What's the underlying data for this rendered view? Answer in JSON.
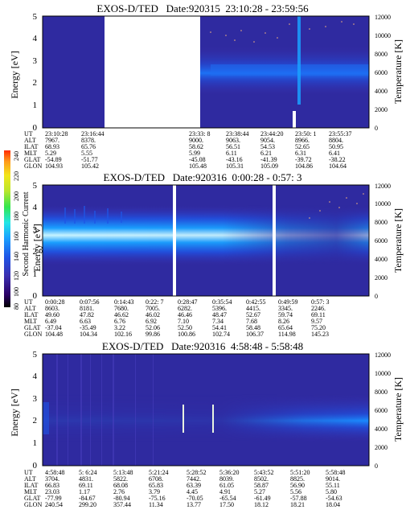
{
  "colorbar": {
    "label": "Second Harmonic Current",
    "ticks": [
      "80",
      "100",
      "120",
      "140",
      "160",
      "180",
      "200",
      "220",
      "240"
    ],
    "colors": [
      "#000000",
      "#2a0066",
      "#3b2fb0",
      "#1f55e6",
      "#1aa0ff",
      "#22e6e6",
      "#33e64d",
      "#b8e62e",
      "#f2e61a",
      "#ff9a1a",
      "#ff2a00"
    ]
  },
  "row_labels": [
    "UT",
    "ALT",
    "ILAT",
    "MLT",
    "GLAT",
    "GLON"
  ],
  "chart_data": [
    {
      "type": "heatmap",
      "title": "EXOS-D/TED   Date:920315  23:10:28 - 23:59:56",
      "ylabel": "Energy [eV]",
      "y2label": "Temperature [K]",
      "ylim": [
        0,
        5
      ],
      "y_ticks": [
        "0",
        "1",
        "2",
        "3",
        "4",
        "5"
      ],
      "y2lim": [
        0,
        12000
      ],
      "y2_ticks": [
        "0",
        "2000",
        "4000",
        "6000",
        "8000",
        "10000",
        "12000"
      ],
      "data_gap": true,
      "table": [
        [
          "23:10:28",
          "23:16:44",
          "23:33: 8",
          "23:38:44",
          "23:44:20",
          "23:50: 1",
          "23:55:37"
        ],
        [
          "7967.",
          "8378.",
          "9000.",
          "9063.",
          "9054.",
          "8966.",
          "8804."
        ],
        [
          "68.93",
          "65.76",
          "58.62",
          "56.51",
          "54.53",
          "52.65",
          "50.95"
        ],
        [
          "5.29",
          "5.55",
          "5.99",
          "6.11",
          "6.21",
          "6.31",
          "6.41"
        ],
        [
          "-54.89",
          "-51.77",
          "-45.08",
          "-43.16",
          "-41.39",
          "-39.72",
          "-38.22"
        ],
        [
          "104.93",
          "105.42",
          "105.48",
          "105.31",
          "105.09",
          "104.86",
          "104.64"
        ]
      ]
    },
    {
      "type": "heatmap",
      "title": "EXOS-D/TED   Date:920316  0:00:28 - 0:57: 3",
      "ylabel": "Energy [eV]",
      "y2label": "Temperature [K]",
      "ylim": [
        0,
        5
      ],
      "y_ticks": [
        "0",
        "1",
        "2",
        "3",
        "4",
        "5"
      ],
      "y2lim": [
        0,
        12000
      ],
      "y2_ticks": [
        "0",
        "2000",
        "4000",
        "6000",
        "8000",
        "10000",
        "12000"
      ],
      "table": [
        [
          "0:00:28",
          "0:07:56",
          "0:14:43",
          "0:22: 7",
          "0:28:47",
          "0:35:54",
          "0:42:55",
          "0:49:59",
          "0:57: 3"
        ],
        [
          "8603.",
          "8181.",
          "7680.",
          "7005.",
          "6282.",
          "5396.",
          "4415.",
          "3345.",
          "2246."
        ],
        [
          "49.60",
          "47.82",
          "46.62",
          "46.02",
          "46.46",
          "48.47",
          "52.67",
          "59.74",
          "69.11"
        ],
        [
          "6.49",
          "6.63",
          "6.76",
          "6.92",
          "7.10",
          "7.34",
          "7.68",
          "8.26",
          "9.57"
        ],
        [
          "-37.04",
          "-35.49",
          "3.22",
          "52.06",
          "52.50",
          "54.41",
          "58.48",
          "65.64",
          "75.20"
        ],
        [
          "104.48",
          "104.34",
          "102.16",
          "99.86",
          "100.86",
          "102.74",
          "106.37",
          "114.98",
          "145.23"
        ]
      ]
    },
    {
      "type": "heatmap",
      "title": "EXOS-D/TED   Date:920316  4:58:48 - 5:58:48",
      "ylabel": "Energy [eV]",
      "y2label": "Temperature [K]",
      "ylim": [
        0,
        5
      ],
      "y_ticks": [
        "0",
        "1",
        "2",
        "3",
        "4",
        "5"
      ],
      "y2lim": [
        0,
        12000
      ],
      "y2_ticks": [
        "0",
        "2000",
        "4000",
        "6000",
        "8000",
        "10000",
        "12000"
      ],
      "table": [
        [
          "4:58:48",
          "5: 6:24",
          "5:13:48",
          "5:21:24",
          "5:28:52",
          "5:36:20",
          "5:43:52",
          "5:51:20",
          "5:58:48"
        ],
        [
          "3704.",
          "4831.",
          "5822.",
          "6708.",
          "7442.",
          "8039.",
          "8502.",
          "8825.",
          "9014."
        ],
        [
          "66.83",
          "69.11",
          "68.08",
          "65.83",
          "63.39",
          "61.05",
          "58.87",
          "56.90",
          "55.11"
        ],
        [
          "23.03",
          "1.17",
          "2.76",
          "3.79",
          "4.45",
          "4.91",
          "5.27",
          "5.56",
          "5.80"
        ],
        [
          "-77.99",
          "-84.67",
          "-80.94",
          "-75.16",
          "-70.05",
          "-65.54",
          "-61.49",
          "-57.88",
          "-54.63"
        ],
        [
          "240.54",
          "299.20",
          "357.44",
          "11.34",
          "13.77",
          "17.50",
          "18.12",
          "18.21",
          "18.04"
        ]
      ]
    }
  ]
}
